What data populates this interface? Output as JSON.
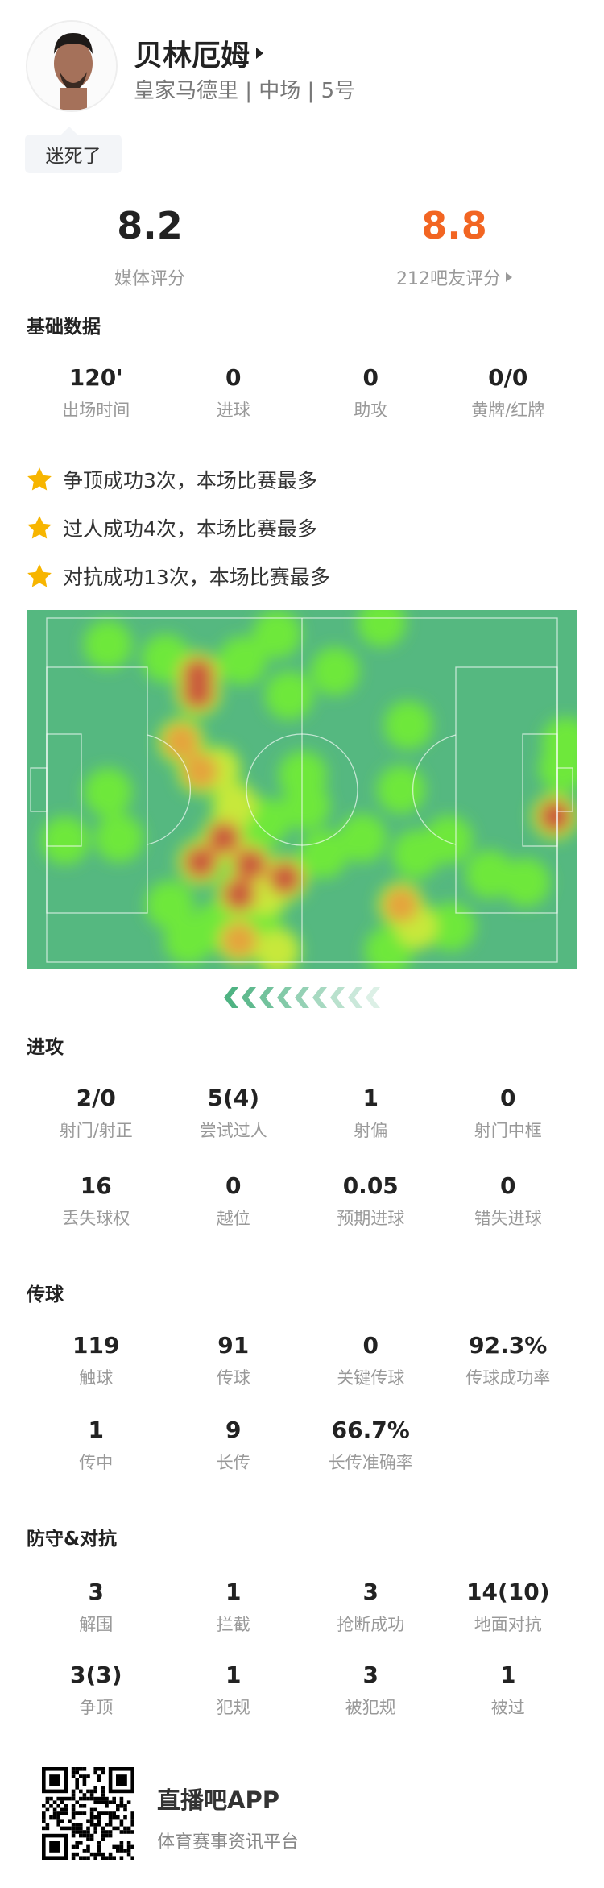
{
  "player": {
    "name": "贝林厄姆",
    "subtitle": "皇家马德里 | 中场 | 5号",
    "comment": "迷死了"
  },
  "ratings": {
    "media_score": "8.2",
    "media_label": "媒体评分",
    "fan_score": "8.8",
    "fan_label": "212吧友评分",
    "fan_color": "#f26522"
  },
  "basic": {
    "title": "基础数据",
    "stats": [
      {
        "value": "120'",
        "label": "出场时间"
      },
      {
        "value": "0",
        "label": "进球"
      },
      {
        "value": "0",
        "label": "助攻"
      },
      {
        "value": "0/0",
        "label": "黄牌/红牌"
      }
    ]
  },
  "highlights": [
    "争顶成功3次，本场比赛最多",
    "过人成功4次，本场比赛最多",
    "对抗成功13次，本场比赛最多"
  ],
  "attack": {
    "title": "进攻",
    "stats": [
      {
        "value": "2/0",
        "label": "射门/射正"
      },
      {
        "value": "5(4)",
        "label": "尝试过人"
      },
      {
        "value": "1",
        "label": "射偏"
      },
      {
        "value": "0",
        "label": "射门中框"
      },
      {
        "value": "16",
        "label": "丢失球权"
      },
      {
        "value": "0",
        "label": "越位"
      },
      {
        "value": "0.05",
        "label": "预期进球"
      },
      {
        "value": "0",
        "label": "错失进球"
      }
    ]
  },
  "passing": {
    "title": "传球",
    "stats": [
      {
        "value": "119",
        "label": "触球"
      },
      {
        "value": "91",
        "label": "传球"
      },
      {
        "value": "0",
        "label": "关键传球"
      },
      {
        "value": "92.3%",
        "label": "传球成功率"
      },
      {
        "value": "1",
        "label": "传中"
      },
      {
        "value": "9",
        "label": "长传"
      },
      {
        "value": "66.7%",
        "label": "长传准确率"
      }
    ]
  },
  "defense": {
    "title": "防守&对抗",
    "stats": [
      {
        "value": "3",
        "label": "解围"
      },
      {
        "value": "1",
        "label": "拦截"
      },
      {
        "value": "3",
        "label": "抢断成功"
      },
      {
        "value": "14(10)",
        "label": "地面对抗"
      },
      {
        "value": "3(3)",
        "label": "争顶"
      },
      {
        "value": "1",
        "label": "犯规"
      },
      {
        "value": "3",
        "label": "被犯规"
      },
      {
        "value": "1",
        "label": "被过"
      }
    ]
  },
  "footer": {
    "app_name": "直播吧APP",
    "tagline": "体育赛事资讯平台"
  },
  "colors": {
    "pitch": "#55b880",
    "star": "#f7b500",
    "chevron": "#4fb383"
  }
}
